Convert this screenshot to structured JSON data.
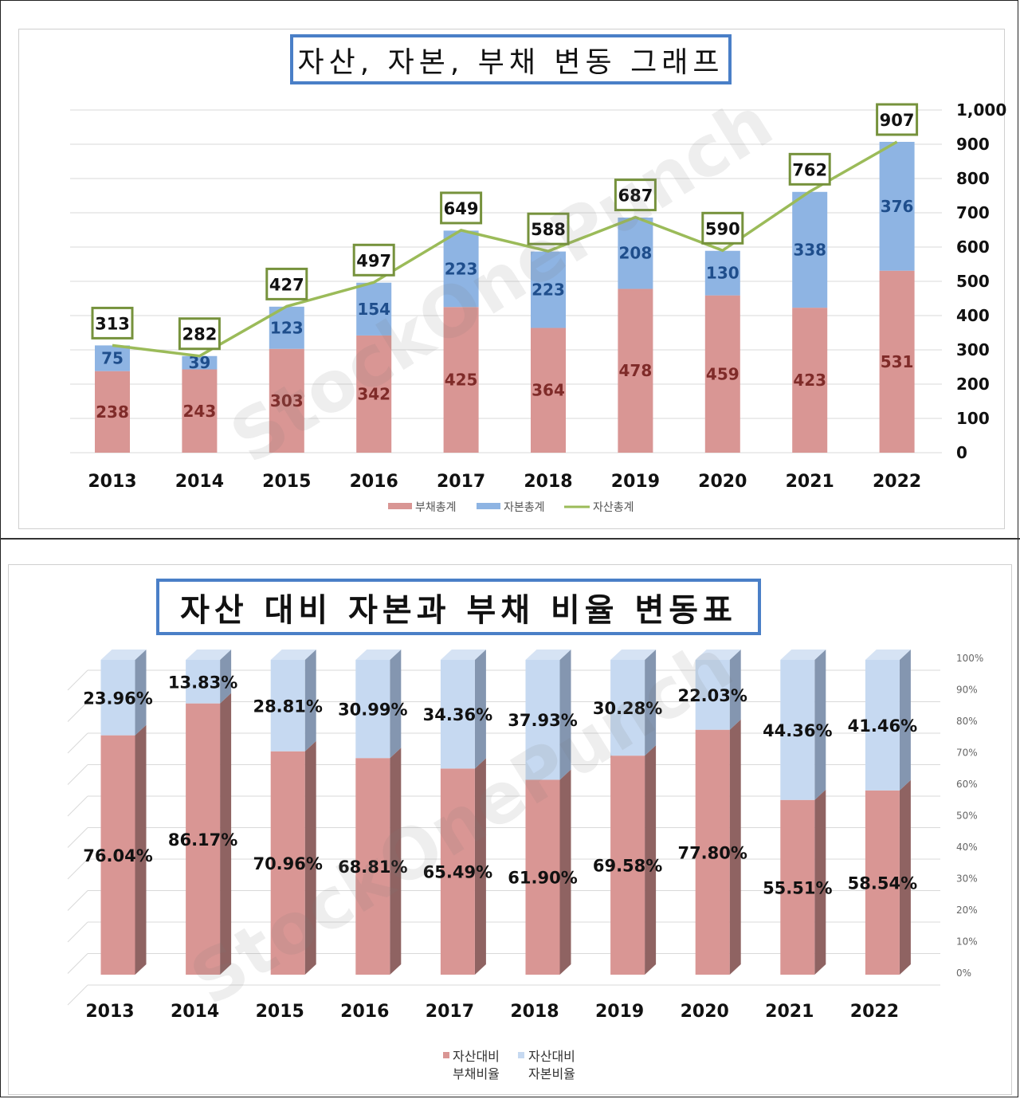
{
  "watermark": "StockOnePunch",
  "colors": {
    "debt": "#d99694",
    "equity": "#8eb4e3",
    "assets_line": "#9bbb59",
    "debt_ratio": "#d99694",
    "equity_ratio": "#c6d9f1",
    "label_box": "#76923c"
  },
  "chart_data": [
    {
      "type": "bar",
      "stacked": true,
      "title": "자산, 자본, 부채 변동 그래프",
      "categories": [
        "2013",
        "2014",
        "2015",
        "2016",
        "2017",
        "2018",
        "2019",
        "2020",
        "2021",
        "2022"
      ],
      "series": [
        {
          "name": "부채총계",
          "kind": "bar",
          "values": [
            238,
            243,
            303,
            342,
            425,
            364,
            478,
            459,
            423,
            531
          ]
        },
        {
          "name": "자본총계",
          "kind": "bar",
          "values": [
            75,
            39,
            123,
            154,
            223,
            223,
            208,
            130,
            338,
            376
          ]
        },
        {
          "name": "자산총계",
          "kind": "line",
          "values": [
            313,
            282,
            427,
            497,
            649,
            588,
            687,
            590,
            762,
            907
          ]
        }
      ],
      "ylim": [
        0,
        1000
      ],
      "yticks": [
        "0",
        "100",
        "200",
        "300",
        "400",
        "500",
        "600",
        "700",
        "800",
        "900",
        "1,000"
      ],
      "y_axis_side": "right",
      "grid": true,
      "legend": "bottom"
    },
    {
      "type": "bar",
      "stacked": true,
      "percent": true,
      "style": "3d",
      "title": "자산 대비 자본과 부채 비율 변동표",
      "categories": [
        "2013",
        "2014",
        "2015",
        "2016",
        "2017",
        "2018",
        "2019",
        "2020",
        "2021",
        "2022"
      ],
      "series": [
        {
          "name": "자산대비 부채비율",
          "legend_lines": [
            "자산대비",
            "부채비율"
          ],
          "labels": [
            "76.04%",
            "86.17%",
            "70.96%",
            "68.81%",
            "65.49%",
            "61.90%",
            "69.58%",
            "77.80%",
            "55.51%",
            "58.54%"
          ],
          "values": [
            76.04,
            86.17,
            70.96,
            68.81,
            65.49,
            61.9,
            69.58,
            77.8,
            55.51,
            58.54
          ]
        },
        {
          "name": "자산대비 자본비율",
          "legend_lines": [
            "자산대비",
            "자본비율"
          ],
          "labels": [
            "23.96%",
            "13.83%",
            "28.81%",
            "30.99%",
            "34.36%",
            "37.93%",
            "30.28%",
            "22.03%",
            "44.36%",
            "41.46%"
          ],
          "values": [
            23.96,
            13.83,
            28.81,
            30.99,
            34.36,
            37.93,
            30.28,
            22.03,
            44.36,
            41.46
          ]
        }
      ],
      "ylim": [
        0,
        100
      ],
      "yticks": [
        "0%",
        "10%",
        "20%",
        "30%",
        "40%",
        "50%",
        "60%",
        "70%",
        "80%",
        "90%",
        "100%"
      ],
      "y_axis_side": "right",
      "grid": true,
      "legend": "bottom"
    }
  ]
}
